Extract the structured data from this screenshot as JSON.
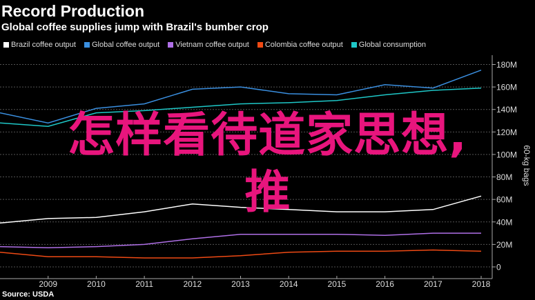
{
  "header": {
    "title": "Record Production",
    "subtitle": "Global coffee supplies jump with Brazil's bumber crop"
  },
  "source": "Source: USDA",
  "overlay": {
    "line1": "怎样看待道家思想,",
    "line2": "推",
    "color": "#e8157d"
  },
  "chart_data": {
    "type": "line",
    "x": [
      2008,
      2009,
      2010,
      2011,
      2012,
      2013,
      2014,
      2015,
      2016,
      2017,
      2018
    ],
    "xlim": [
      2008,
      2018
    ],
    "ylim": [
      0,
      180
    ],
    "ylabel": "60-kg bags",
    "y_ticks": [
      0,
      20,
      40,
      60,
      80,
      100,
      120,
      140,
      160,
      180
    ],
    "y_tick_labels": [
      "0",
      "20M",
      "40M",
      "60M",
      "80M",
      "100M",
      "120M",
      "140M",
      "160M",
      "180M"
    ],
    "x_tick_labels": [
      "2009",
      "2010",
      "2011",
      "2012",
      "2013",
      "2014",
      "2015",
      "2016",
      "2017",
      "2018"
    ],
    "grid": true,
    "legend_position": "top-left",
    "series": [
      {
        "name": "Brazil coffee output",
        "color": "#ffffff",
        "values": [
          39,
          43,
          44,
          49,
          56,
          53,
          51,
          49,
          49,
          51,
          63
        ]
      },
      {
        "name": "Global coffee output",
        "color": "#3a8fe0",
        "values": [
          137,
          128,
          141,
          145,
          158,
          160,
          154,
          153,
          162,
          159,
          175
        ]
      },
      {
        "name": "Vietnam coffee output",
        "color": "#b070e8",
        "values": [
          18,
          17,
          18,
          20,
          25,
          29,
          29,
          29,
          28,
          30,
          30
        ]
      },
      {
        "name": "Colombia coffee output",
        "color": "#f04a14",
        "values": [
          13,
          9,
          9,
          8,
          8,
          10,
          13,
          14,
          14,
          15,
          14
        ]
      },
      {
        "name": "Global consumption",
        "color": "#1ec8c8",
        "values": [
          128,
          125,
          137,
          139,
          142,
          145,
          146,
          148,
          153,
          157,
          159
        ]
      }
    ]
  }
}
